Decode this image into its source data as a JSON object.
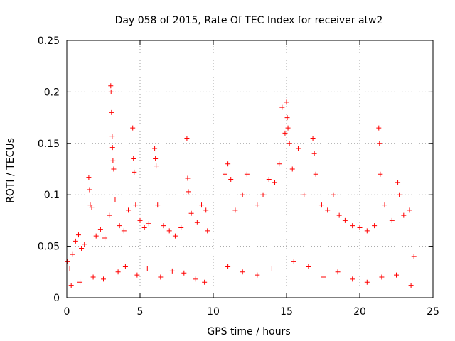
{
  "chart_data": {
    "type": "scatter",
    "title": "Day 058 of 2015, Rate Of TEC Index for receiver atw2",
    "xlabel": "GPS time / hours",
    "ylabel": "ROTI / TECUs",
    "xlim": [
      0,
      25
    ],
    "ylim": [
      0,
      0.25
    ],
    "x_ticks": [
      "0",
      "5",
      "10",
      "15",
      "20",
      "25"
    ],
    "y_ticks": [
      "0",
      "0.05",
      "0.1",
      "0.15",
      "0.2",
      "0.25"
    ],
    "grid": true,
    "marker": "+",
    "color": "#ff0000",
    "notes": "Dense ROTI scatter; data gap between ~9.7 and ~10.7 hours.",
    "series": [
      {
        "points": [
          [
            0.05,
            0.035
          ],
          [
            0.2,
            0.028
          ],
          [
            0.4,
            0.042
          ],
          [
            0.6,
            0.055
          ],
          [
            0.8,
            0.061
          ],
          [
            1.0,
            0.048
          ],
          [
            1.2,
            0.052
          ],
          [
            1.5,
            0.117
          ],
          [
            1.55,
            0.105
          ],
          [
            1.6,
            0.09
          ],
          [
            1.7,
            0.088
          ],
          [
            2.0,
            0.06
          ],
          [
            2.3,
            0.066
          ],
          [
            2.6,
            0.058
          ],
          [
            2.9,
            0.08
          ],
          [
            3.0,
            0.206
          ],
          [
            3.02,
            0.2
          ],
          [
            3.05,
            0.18
          ],
          [
            3.1,
            0.157
          ],
          [
            3.12,
            0.146
          ],
          [
            3.15,
            0.133
          ],
          [
            3.2,
            0.125
          ],
          [
            3.3,
            0.095
          ],
          [
            3.6,
            0.07
          ],
          [
            3.9,
            0.065
          ],
          [
            4.2,
            0.085
          ],
          [
            4.5,
            0.165
          ],
          [
            4.55,
            0.135
          ],
          [
            4.6,
            0.122
          ],
          [
            4.7,
            0.09
          ],
          [
            5.0,
            0.075
          ],
          [
            5.3,
            0.068
          ],
          [
            5.6,
            0.072
          ],
          [
            6.0,
            0.145
          ],
          [
            6.05,
            0.135
          ],
          [
            6.1,
            0.128
          ],
          [
            6.2,
            0.09
          ],
          [
            6.6,
            0.07
          ],
          [
            7.0,
            0.065
          ],
          [
            7.4,
            0.06
          ],
          [
            7.8,
            0.068
          ],
          [
            8.2,
            0.155
          ],
          [
            8.25,
            0.116
          ],
          [
            8.3,
            0.103
          ],
          [
            8.5,
            0.082
          ],
          [
            8.9,
            0.073
          ],
          [
            9.2,
            0.09
          ],
          [
            9.5,
            0.085
          ],
          [
            9.6,
            0.065
          ],
          [
            10.8,
            0.12
          ],
          [
            11.0,
            0.13
          ],
          [
            11.2,
            0.115
          ],
          [
            11.5,
            0.085
          ],
          [
            12.0,
            0.1
          ],
          [
            12.3,
            0.12
          ],
          [
            12.5,
            0.095
          ],
          [
            13.0,
            0.09
          ],
          [
            13.4,
            0.1
          ],
          [
            13.8,
            0.115
          ],
          [
            14.2,
            0.112
          ],
          [
            14.5,
            0.13
          ],
          [
            14.7,
            0.185
          ],
          [
            14.9,
            0.16
          ],
          [
            15.0,
            0.19
          ],
          [
            15.05,
            0.175
          ],
          [
            15.1,
            0.165
          ],
          [
            15.2,
            0.15
          ],
          [
            15.4,
            0.125
          ],
          [
            15.8,
            0.145
          ],
          [
            16.2,
            0.1
          ],
          [
            16.8,
            0.155
          ],
          [
            16.9,
            0.14
          ],
          [
            17.0,
            0.12
          ],
          [
            17.4,
            0.09
          ],
          [
            17.8,
            0.085
          ],
          [
            18.2,
            0.1
          ],
          [
            18.6,
            0.08
          ],
          [
            19.0,
            0.075
          ],
          [
            19.5,
            0.07
          ],
          [
            20.0,
            0.068
          ],
          [
            20.5,
            0.065
          ],
          [
            21.0,
            0.07
          ],
          [
            21.3,
            0.165
          ],
          [
            21.35,
            0.15
          ],
          [
            21.4,
            0.12
          ],
          [
            21.7,
            0.09
          ],
          [
            22.2,
            0.075
          ],
          [
            22.6,
            0.112
          ],
          [
            22.7,
            0.1
          ],
          [
            23.0,
            0.08
          ],
          [
            23.4,
            0.085
          ],
          [
            23.7,
            0.04
          ],
          [
            0.3,
            0.012
          ],
          [
            0.9,
            0.015
          ],
          [
            1.8,
            0.02
          ],
          [
            2.5,
            0.018
          ],
          [
            3.5,
            0.025
          ],
          [
            4.0,
            0.03
          ],
          [
            4.8,
            0.022
          ],
          [
            5.5,
            0.028
          ],
          [
            6.4,
            0.02
          ],
          [
            7.2,
            0.026
          ],
          [
            8.0,
            0.024
          ],
          [
            8.8,
            0.018
          ],
          [
            9.4,
            0.015
          ],
          [
            11.0,
            0.03
          ],
          [
            12.0,
            0.025
          ],
          [
            13.0,
            0.022
          ],
          [
            14.0,
            0.028
          ],
          [
            15.5,
            0.035
          ],
          [
            16.5,
            0.03
          ],
          [
            17.5,
            0.02
          ],
          [
            18.5,
            0.025
          ],
          [
            19.5,
            0.018
          ],
          [
            20.5,
            0.015
          ],
          [
            21.5,
            0.02
          ],
          [
            22.5,
            0.022
          ],
          [
            23.5,
            0.012
          ]
        ]
      }
    ]
  }
}
